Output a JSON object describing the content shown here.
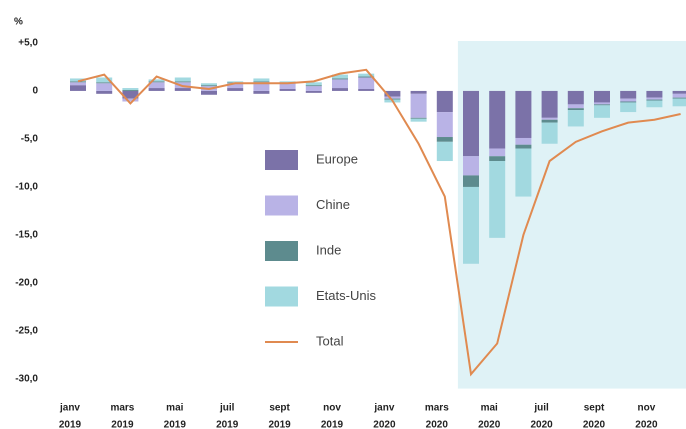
{
  "chart_data": {
    "type": "bar",
    "y_label": "%",
    "categories": [
      [
        "janv",
        "2019"
      ],
      null,
      [
        "mars",
        "2019"
      ],
      null,
      [
        "mai",
        "2019"
      ],
      null,
      [
        "juil",
        "2019"
      ],
      null,
      [
        "sept",
        "2019"
      ],
      null,
      [
        "nov",
        "2019"
      ],
      null,
      [
        "janv",
        "2020"
      ],
      null,
      [
        "mars",
        "2020"
      ],
      null,
      [
        "mai",
        "2020"
      ],
      null,
      [
        "juil",
        "2020"
      ],
      null,
      [
        "sept",
        "2020"
      ],
      null,
      [
        "nov",
        "2020"
      ],
      null
    ],
    "series": [
      {
        "name": "Europe",
        "color": "#7b72a8",
        "values": [
          0.6,
          -0.3,
          -0.8,
          0.3,
          0.3,
          -0.4,
          0.3,
          -0.3,
          0.2,
          -0.2,
          0.3,
          0.2,
          -0.6,
          -0.3,
          -2.2,
          -6.8,
          -6.0,
          -4.9,
          -2.8,
          -1.4,
          -1.2,
          -0.8,
          -0.7,
          -0.3
        ]
      },
      {
        "name": "Chine",
        "color": "#b9b3e6",
        "values": [
          0.3,
          0.8,
          -0.3,
          0.6,
          0.6,
          0.5,
          0.5,
          0.9,
          0.6,
          0.5,
          0.9,
          1.2,
          -0.2,
          -2.5,
          -2.6,
          -2.0,
          -0.8,
          -0.7,
          -0.2,
          -0.4,
          -0.2,
          -0.3,
          -0.2,
          -0.4
        ]
      },
      {
        "name": "Inde",
        "color": "#5d8b8e",
        "values": [
          0.1,
          0.1,
          0.1,
          0.1,
          0.1,
          0.1,
          0.1,
          0.1,
          0.1,
          0.1,
          0.1,
          0.1,
          -0.1,
          -0.1,
          -0.5,
          -1.2,
          -0.5,
          -0.4,
          -0.3,
          -0.2,
          -0.1,
          -0.1,
          -0.1,
          -0.1
        ]
      },
      {
        "name": "Etats-Unis",
        "color": "#a2d9e0",
        "values": [
          0.3,
          0.5,
          0.2,
          0.2,
          0.4,
          0.2,
          0.1,
          0.3,
          0.1,
          0.3,
          0.4,
          0.3,
          -0.3,
          -0.3,
          -2.0,
          -8.0,
          -8.0,
          -5.0,
          -2.2,
          -1.7,
          -1.3,
          -1.0,
          -0.7,
          -0.8
        ]
      },
      {
        "name": "Total",
        "color": "#e08a50",
        "type": "line",
        "values": [
          1.0,
          1.7,
          -1.3,
          1.5,
          0.5,
          0.2,
          0.8,
          0.8,
          0.8,
          1.0,
          1.8,
          2.2,
          -1.0,
          -5.5,
          -11.0,
          -29.5,
          -26.3,
          -15.0,
          -7.3,
          -5.3,
          -4.2,
          -3.3,
          -3.0,
          -2.4
        ]
      }
    ],
    "ylim": [
      -31,
      5.2
    ],
    "yticks": [
      {
        "value": 5,
        "label": "+5,0"
      },
      0,
      {
        "value": -5,
        "label": "-5,0"
      },
      {
        "value": -10,
        "label": "-10,0"
      },
      {
        "value": -15,
        "label": "-15,0"
      },
      {
        "value": -20,
        "label": "-20,0"
      },
      {
        "value": -25,
        "label": "-25,0"
      },
      {
        "value": -30,
        "label": "-30,0"
      }
    ],
    "legend": "center"
  }
}
